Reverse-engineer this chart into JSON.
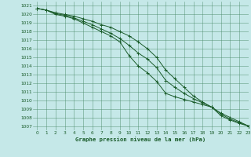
{
  "title": "Graphe pression niveau de la mer (hPa)",
  "bg_color": "#c5e8e8",
  "grid_color": "#4a8a6a",
  "line_color": "#1a5c2a",
  "xlim": [
    -0.5,
    23
  ],
  "ylim": [
    1006.5,
    1021.5
  ],
  "xticks": [
    0,
    1,
    2,
    3,
    4,
    5,
    6,
    7,
    8,
    9,
    10,
    11,
    12,
    13,
    14,
    15,
    16,
    17,
    18,
    19,
    20,
    21,
    22,
    23
  ],
  "yticks": [
    1007,
    1008,
    1009,
    1010,
    1011,
    1012,
    1013,
    1014,
    1015,
    1016,
    1017,
    1018,
    1019,
    1020,
    1021
  ],
  "line1_x": [
    0,
    1,
    2,
    3,
    4,
    5,
    6,
    7,
    8,
    9,
    10,
    11,
    12,
    13,
    14,
    15,
    16,
    17,
    18,
    19,
    20,
    21,
    22,
    23
  ],
  "line1_y": [
    1020.7,
    1020.5,
    1020.0,
    1019.8,
    1019.5,
    1019.0,
    1018.5,
    1018.0,
    1017.5,
    1016.8,
    1015.2,
    1014.0,
    1013.2,
    1012.2,
    1010.8,
    1010.4,
    1010.1,
    1009.8,
    1009.5,
    1009.2,
    1008.2,
    1007.7,
    1007.3,
    1007.0
  ],
  "line2_x": [
    0,
    1,
    2,
    3,
    4,
    5,
    6,
    7,
    8,
    9,
    10,
    11,
    12,
    13,
    14,
    15,
    16,
    17,
    18,
    19,
    20,
    21,
    22,
    23
  ],
  "line2_y": [
    1020.7,
    1020.5,
    1020.2,
    1020.0,
    1019.8,
    1019.5,
    1019.2,
    1018.8,
    1018.5,
    1018.0,
    1017.5,
    1016.8,
    1016.0,
    1015.0,
    1013.5,
    1012.5,
    1011.5,
    1010.5,
    1009.8,
    1009.2,
    1008.5,
    1008.0,
    1007.5,
    1007.0
  ],
  "line3_x": [
    0,
    1,
    2,
    3,
    4,
    5,
    6,
    7,
    8,
    9,
    10,
    11,
    12,
    13,
    14,
    15,
    16,
    17,
    18,
    19,
    20,
    21,
    22,
    23
  ],
  "line3_y": [
    1020.7,
    1020.5,
    1020.1,
    1019.9,
    1019.6,
    1019.2,
    1018.8,
    1018.3,
    1017.8,
    1017.2,
    1016.4,
    1015.5,
    1014.8,
    1013.8,
    1012.3,
    1011.5,
    1010.8,
    1010.2,
    1009.7,
    1009.2,
    1008.4,
    1007.8,
    1007.4,
    1007.0
  ]
}
